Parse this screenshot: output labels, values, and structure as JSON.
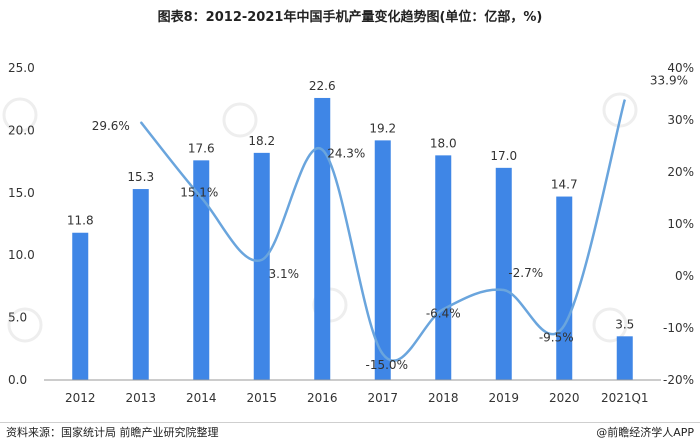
{
  "chart_data": {
    "type": "bar+line",
    "title": "图表8：2012-2021年中国手机产量变化趋势图(单位：亿部，%)",
    "categories": [
      "2012",
      "2013",
      "2014",
      "2015",
      "2016",
      "2017",
      "2018",
      "2019",
      "2020",
      "2021Q1"
    ],
    "series": [
      {
        "type": "bar",
        "axis": "left",
        "values": [
          11.8,
          15.3,
          17.6,
          18.2,
          22.6,
          19.2,
          18.0,
          17.0,
          14.7,
          3.5
        ],
        "labels": [
          "11.8",
          "15.3",
          "17.6",
          "18.2",
          "22.6",
          "19.2",
          "18.0",
          "17.0",
          "14.7",
          "3.5"
        ],
        "color": "#3f86e6"
      },
      {
        "type": "line",
        "axis": "right",
        "values": [
          null,
          29.6,
          15.1,
          3.1,
          24.3,
          -15.0,
          -6.4,
          -2.7,
          -9.5,
          33.9
        ],
        "labels": [
          null,
          "29.6%",
          "15.1%",
          "3.1%",
          "24.3%",
          "-15.0%",
          "-6.4%",
          "-2.7%",
          "-9.5%",
          "33.9%"
        ],
        "color": "#6aa5dd"
      }
    ],
    "y_left": {
      "min": 0,
      "max": 25,
      "ticks": [
        "0.0",
        "5.0",
        "10.0",
        "15.0",
        "20.0",
        "25.0"
      ]
    },
    "y_right": {
      "min": -20,
      "max": 40,
      "ticks": [
        "-20%",
        "-10%",
        "0%",
        "10%",
        "20%",
        "30%",
        "40%"
      ]
    },
    "grid": false,
    "legend": "none"
  },
  "footer": {
    "source": "资料来源：国家统计局 前瞻产业研究院整理",
    "brand": "@前瞻经济学人APP"
  }
}
